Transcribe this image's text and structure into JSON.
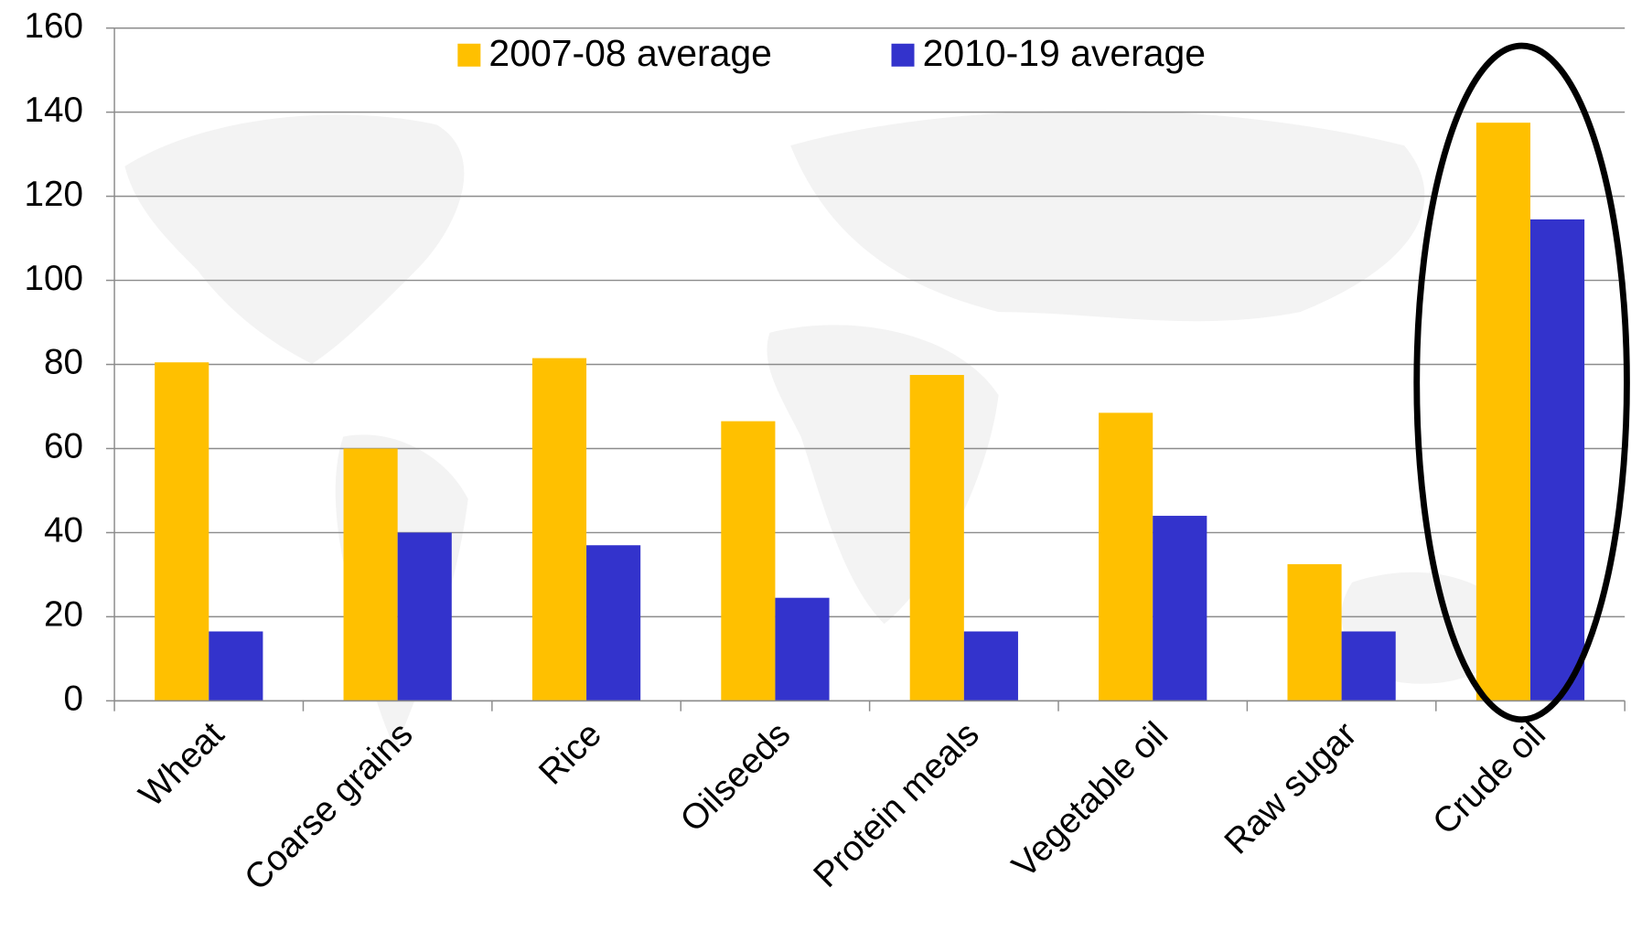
{
  "chart_data": {
    "type": "bar",
    "categories": [
      "Wheat",
      "Coarse grains",
      "Rice",
      "Oilseeds",
      "Protein meals",
      "Vegetable oil",
      "Raw sugar",
      "Crude oil"
    ],
    "series": [
      {
        "name": "2007-08 average",
        "color": "#ffc000",
        "values": [
          80.5,
          60,
          81.5,
          66.5,
          77.5,
          68.5,
          32.5,
          137.5
        ]
      },
      {
        "name": "2010-19 average",
        "color": "#3333cc",
        "values": [
          16.5,
          40,
          37,
          24.5,
          16.5,
          44,
          16.5,
          114.5
        ]
      }
    ],
    "ylim": [
      0,
      160
    ],
    "yticks": [
      0,
      20,
      40,
      60,
      80,
      100,
      120,
      140,
      160
    ],
    "grid": true,
    "legend": "top"
  }
}
